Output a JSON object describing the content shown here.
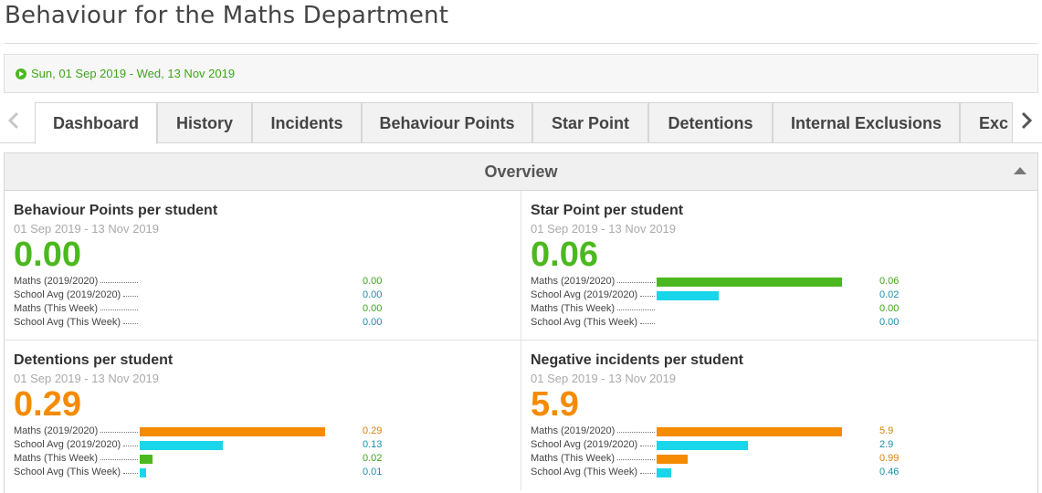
{
  "page": {
    "title": "Behaviour for the Maths Department"
  },
  "date_bar": {
    "icon": "play-circle-icon",
    "range": "Sun, 01 Sep 2019 - Wed, 13 Nov 2019"
  },
  "tabs": [
    {
      "label": "Dashboard",
      "active": true
    },
    {
      "label": "History"
    },
    {
      "label": "Incidents"
    },
    {
      "label": "Behaviour Points"
    },
    {
      "label": "Star Point"
    },
    {
      "label": "Detentions"
    },
    {
      "label": "Internal Exclusions"
    },
    {
      "label": "Exc"
    }
  ],
  "overview": {
    "title": "Overview",
    "cards": [
      {
        "title": "Behaviour Points per student",
        "range": "01 Sep 2019 - 13 Nov 2019",
        "value": "0.00",
        "value_color": "#4cb81f",
        "rows": [
          {
            "label": "Maths (2019/2020)",
            "value": "0.00",
            "num": 0,
            "bar_color": "#4cb81f",
            "value_color": "#3fa41a"
          },
          {
            "label": "School Avg (2019/2020)",
            "value": "0.00",
            "num": 0,
            "bar_color": "#19d6ea",
            "value_color": "#1a8fa8"
          },
          {
            "label": "Maths (This Week)",
            "value": "0.00",
            "num": 0,
            "bar_color": "#4cb81f",
            "value_color": "#3fa41a"
          },
          {
            "label": "School Avg (This Week)",
            "value": "0.00",
            "num": 0,
            "bar_color": "#19d6ea",
            "value_color": "#1a8fa8"
          }
        ]
      },
      {
        "title": "Star Point per student",
        "range": "01 Sep 2019 - 13 Nov 2019",
        "value": "0.06",
        "value_color": "#4cb81f",
        "rows": [
          {
            "label": "Maths (2019/2020)",
            "value": "0.06",
            "num": 0.06,
            "bar_color": "#4cb81f",
            "value_color": "#3fa41a"
          },
          {
            "label": "School Avg (2019/2020)",
            "value": "0.02",
            "num": 0.02,
            "bar_color": "#19d6ea",
            "value_color": "#1a8fa8"
          },
          {
            "label": "Maths (This Week)",
            "value": "0.00",
            "num": 0,
            "bar_color": "#4cb81f",
            "value_color": "#3fa41a"
          },
          {
            "label": "School Avg (This Week)",
            "value": "0.00",
            "num": 0,
            "bar_color": "#19d6ea",
            "value_color": "#1a8fa8"
          }
        ]
      },
      {
        "title": "Detentions per student",
        "range": "01 Sep 2019 - 13 Nov 2019",
        "value": "0.29",
        "value_color": "#f58b00",
        "rows": [
          {
            "label": "Maths (2019/2020)",
            "value": "0.29",
            "num": 0.29,
            "bar_color": "#f58b00",
            "value_color": "#d9820a"
          },
          {
            "label": "School Avg (2019/2020)",
            "value": "0.13",
            "num": 0.13,
            "bar_color": "#19d6ea",
            "value_color": "#1a8fa8"
          },
          {
            "label": "Maths (This Week)",
            "value": "0.02",
            "num": 0.02,
            "bar_color": "#4cb81f",
            "value_color": "#3fa41a"
          },
          {
            "label": "School Avg (This Week)",
            "value": "0.01",
            "num": 0.01,
            "bar_color": "#19d6ea",
            "value_color": "#1a8fa8"
          }
        ]
      },
      {
        "title": "Negative incidents per student",
        "range": "01 Sep 2019 - 13 Nov 2019",
        "value": "5.9",
        "value_color": "#f58b00",
        "rows": [
          {
            "label": "Maths (2019/2020)",
            "value": "5.9",
            "num": 5.9,
            "bar_color": "#f58b00",
            "value_color": "#d9820a"
          },
          {
            "label": "School Avg (2019/2020)",
            "value": "2.9",
            "num": 2.9,
            "bar_color": "#19d6ea",
            "value_color": "#1a8fa8"
          },
          {
            "label": "Maths (This Week)",
            "value": "0.99",
            "num": 0.99,
            "bar_color": "#f58b00",
            "value_color": "#d9820a"
          },
          {
            "label": "School Avg (This Week)",
            "value": "0.46",
            "num": 0.46,
            "bar_color": "#19d6ea",
            "value_color": "#1a8fa8"
          }
        ]
      }
    ]
  }
}
